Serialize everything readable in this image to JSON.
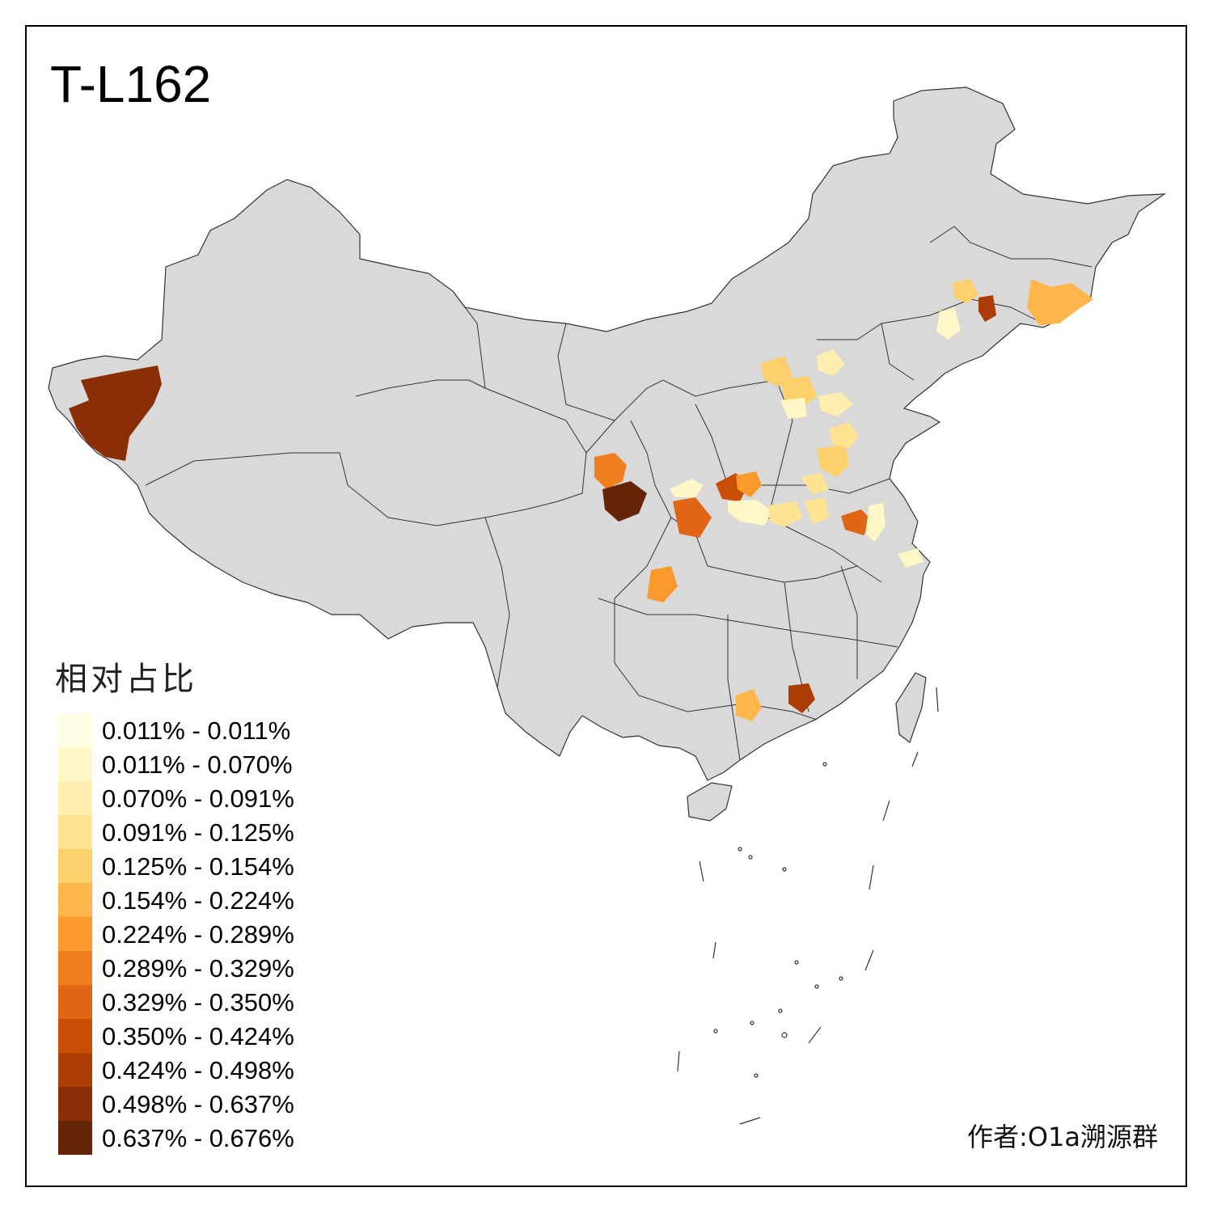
{
  "title": "T-L162",
  "credit": "作者:O1a溯源群",
  "legend": {
    "title": "相对占比",
    "entries": [
      {
        "label": "0.011% - 0.011%",
        "color": "#FFFFE5"
      },
      {
        "label": "0.011% - 0.070%",
        "color": "#FFF7C8"
      },
      {
        "label": "0.070% - 0.091%",
        "color": "#FFEEAE"
      },
      {
        "label": "0.091% - 0.125%",
        "color": "#FEE392"
      },
      {
        "label": "0.125% - 0.154%",
        "color": "#FED06B"
      },
      {
        "label": "0.154% - 0.224%",
        "color": "#FEB549"
      },
      {
        "label": "0.224% - 0.289%",
        "color": "#FB9A2C"
      },
      {
        "label": "0.289% - 0.329%",
        "color": "#F07F1F"
      },
      {
        "label": "0.329% - 0.350%",
        "color": "#E06514"
      },
      {
        "label": "0.350% - 0.424%",
        "color": "#CA4D06"
      },
      {
        "label": "0.424% - 0.498%",
        "color": "#AB3C03"
      },
      {
        "label": "0.498% - 0.637%",
        "color": "#8A2F05"
      },
      {
        "label": "0.637% - 0.676%",
        "color": "#662506"
      }
    ]
  },
  "colors": {
    "land": "#D9D9D9",
    "border": "#333333",
    "frame": "#000000"
  }
}
